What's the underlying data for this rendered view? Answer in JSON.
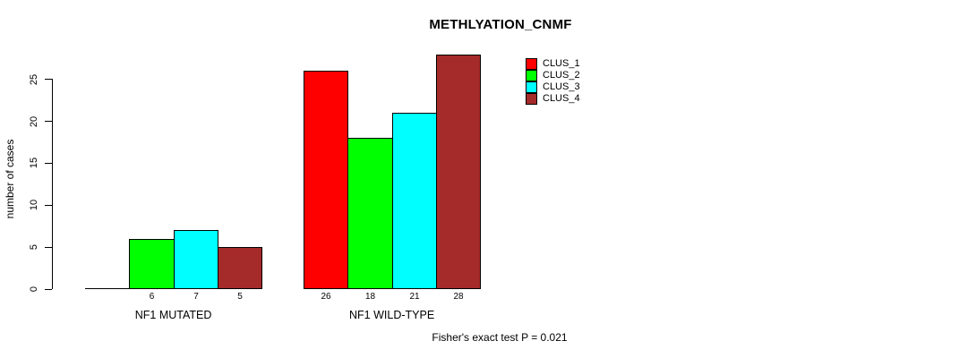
{
  "chart_data": {
    "type": "bar",
    "title": "METHLYATION_CNMF",
    "ylabel": "number of cases",
    "xlabel": "",
    "ylim": [
      0,
      28
    ],
    "yticks": [
      0,
      5,
      10,
      15,
      20,
      25
    ],
    "categories": [
      "NF1 MUTATED",
      "NF1 WILD-TYPE"
    ],
    "series": [
      {
        "name": "CLUS_1",
        "color": "#ff0000",
        "values": [
          0,
          26
        ]
      },
      {
        "name": "CLUS_2",
        "color": "#00ff00",
        "values": [
          6,
          18
        ]
      },
      {
        "name": "CLUS_3",
        "color": "#00ffff",
        "values": [
          7,
          21
        ]
      },
      {
        "name": "CLUS_4",
        "color": "#a52a2a",
        "values": [
          5,
          28
        ]
      }
    ],
    "bar_value_labels": true,
    "hide_zero_value_labels": true,
    "legend_position": "top-right",
    "grid": false,
    "annotation": "Fisher's exact test P = 0.021"
  }
}
